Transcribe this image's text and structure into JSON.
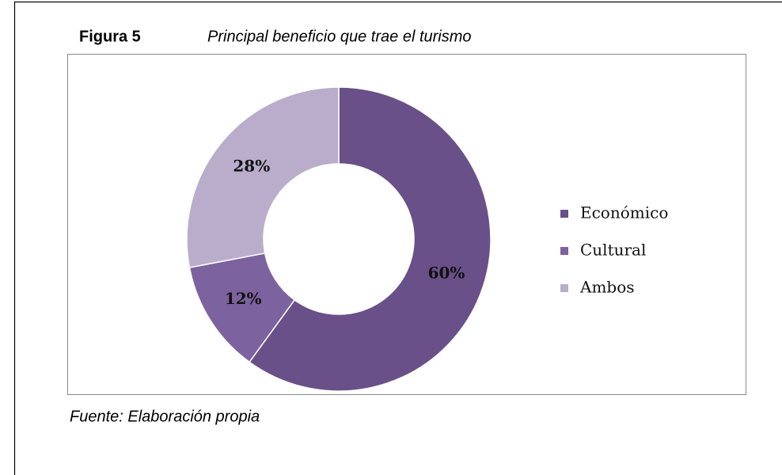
{
  "chart_data": {
    "type": "donut",
    "figure_label": "Figura 5",
    "title": "Principal beneficio que trae el turismo",
    "source": "Fuente: Elaboración propia",
    "categories": [
      "Económico",
      "Cultural",
      "Ambos"
    ],
    "values": [
      60,
      12,
      28
    ],
    "value_labels": [
      "60%",
      "12%",
      "28%"
    ],
    "colors": [
      "#6a5088",
      "#7d62a0",
      "#b9adcb"
    ],
    "legend": "right"
  }
}
